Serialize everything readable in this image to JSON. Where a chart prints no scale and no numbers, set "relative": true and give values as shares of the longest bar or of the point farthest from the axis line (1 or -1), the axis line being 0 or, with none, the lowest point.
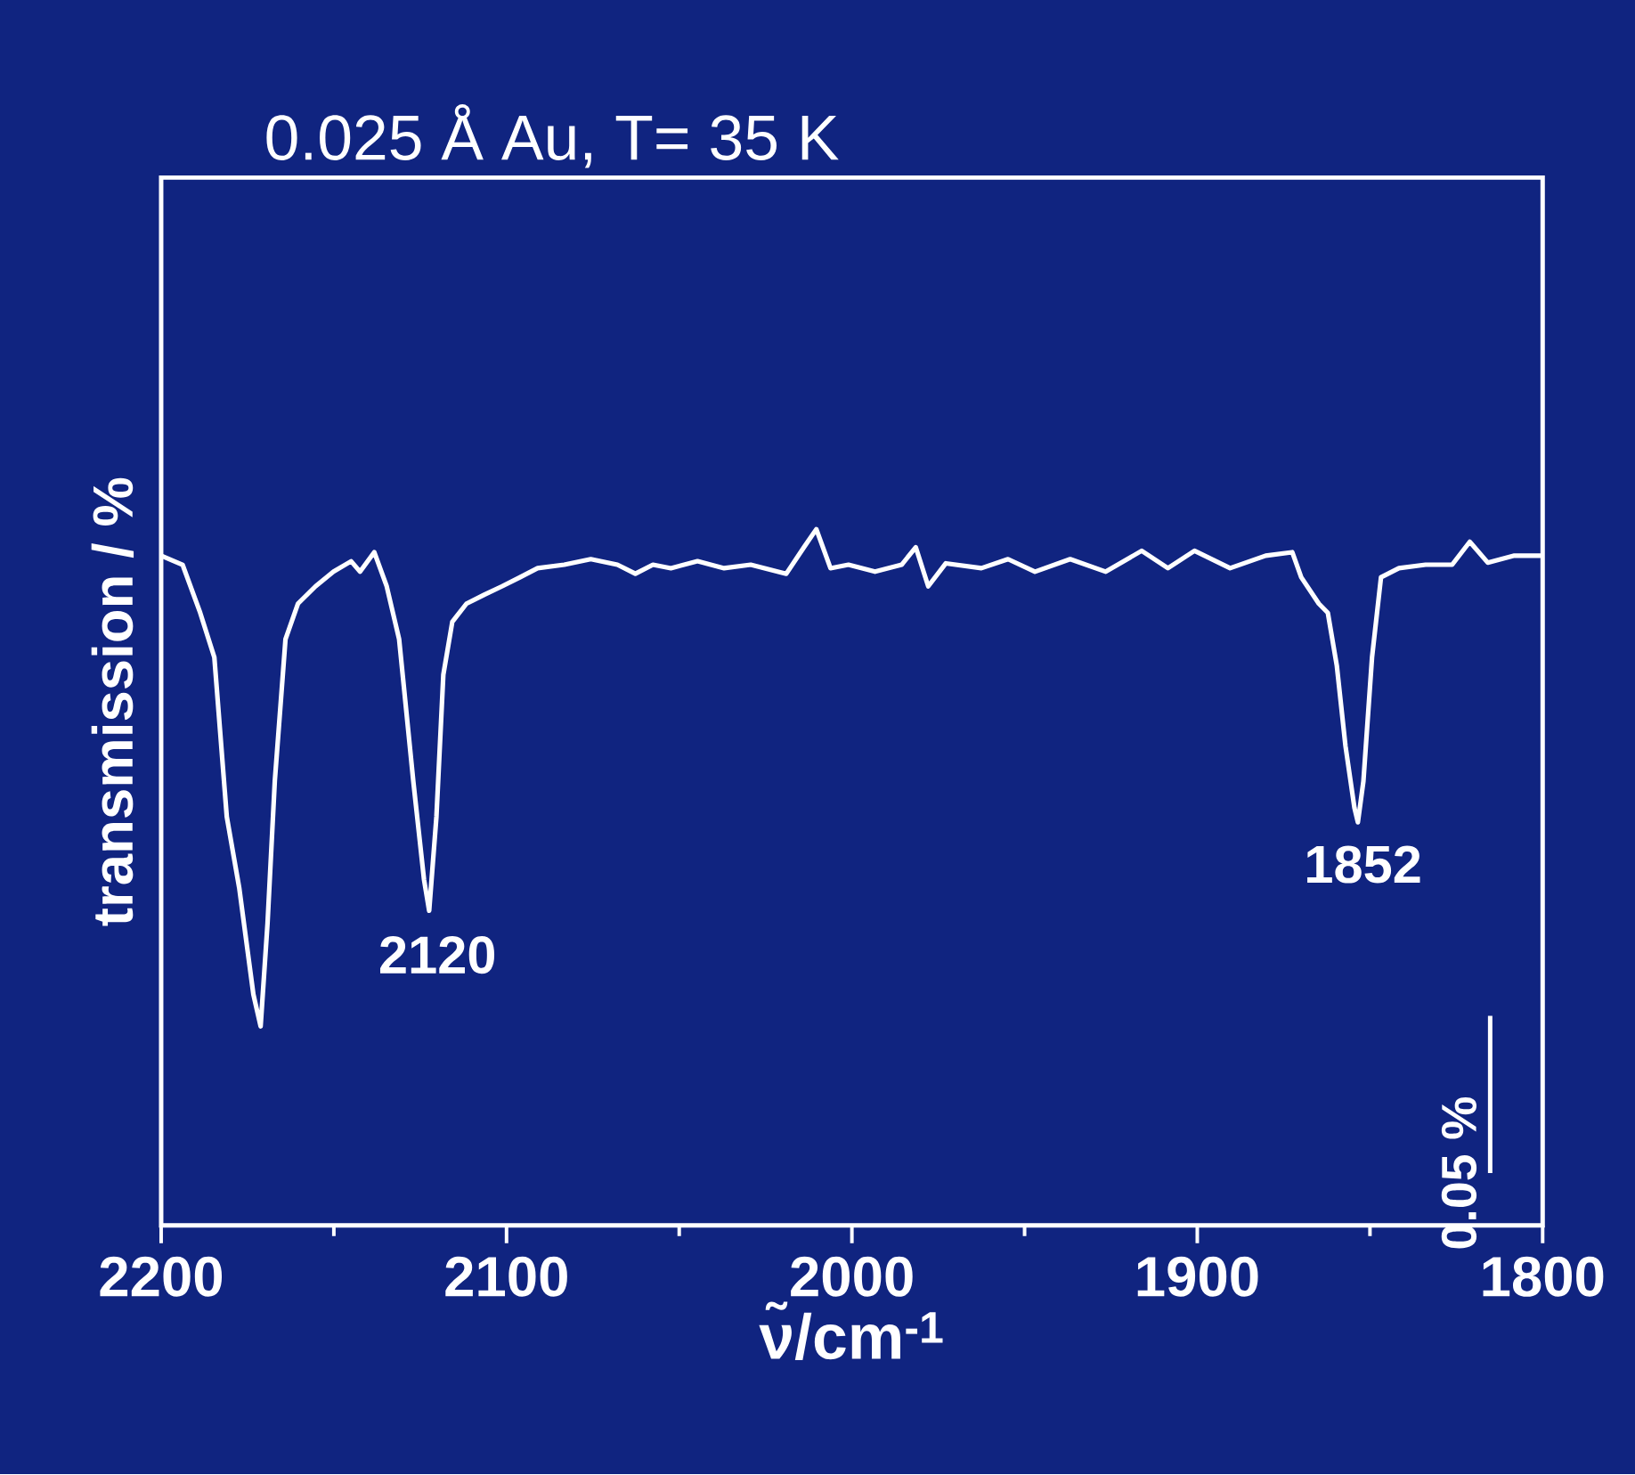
{
  "chart_data": {
    "type": "line",
    "title": "0.025 Å Au, T= 35 K",
    "xlabel": "ν̃/cm$^{-1}$",
    "ylabel": "transmission / %",
    "relative": true,
    "grid": false,
    "marker": "none",
    "line_style": "solid",
    "x": [
      2200,
      2193.8,
      2188.7,
      2184.6,
      2181.0,
      2177.4,
      2173.3,
      2171.2,
      2169.2,
      2167.1,
      2164.0,
      2160.4,
      2155.3,
      2150.1,
      2145.0,
      2142.4,
      2138.3,
      2134.7,
      2131.1,
      2127.0,
      2123.9,
      2122.4,
      2120.3,
      2118.3,
      2115.7,
      2111.6,
      2106.4,
      2101.3,
      2096.1,
      2091.0,
      2083.3,
      2075.6,
      2067.9,
      2062.7,
      2057.6,
      2052.4,
      2044.7,
      2037.0,
      2029.3,
      2019.0,
      2013.9,
      2010.3,
      2006.2,
      2001.0,
      1993.3,
      1985.6,
      1981.5,
      1977.9,
      1972.8,
      1962.5,
      1954.8,
      1947.0,
      1936.8,
      1926.5,
      1916.1,
      1908.5,
      1900.8,
      1890.5,
      1880.2,
      1872.5,
      1869.9,
      1864.8,
      1862.2,
      1859.6,
      1857.1,
      1854.5,
      1853.5,
      1851.9,
      1849.4,
      1846.8,
      1841.6,
      1833.9,
      1826.2,
      1821.1,
      1815.9,
      1808.2,
      1800
    ],
    "series": [
      {
        "color": "#ffffff",
        "values": [
          0.962,
          0.949,
          0.88,
          0.816,
          0.587,
          0.485,
          0.332,
          0.286,
          0.434,
          0.638,
          0.842,
          0.893,
          0.918,
          0.939,
          0.954,
          0.939,
          0.967,
          0.918,
          0.842,
          0.638,
          0.497,
          0.452,
          0.587,
          0.791,
          0.867,
          0.893,
          0.906,
          0.918,
          0.931,
          0.944,
          0.949,
          0.957,
          0.949,
          0.936,
          0.949,
          0.944,
          0.954,
          0.944,
          0.949,
          0.936,
          0.974,
          1.0,
          0.944,
          0.949,
          0.939,
          0.949,
          0.974,
          0.918,
          0.951,
          0.944,
          0.957,
          0.939,
          0.957,
          0.939,
          0.969,
          0.944,
          0.969,
          0.944,
          0.962,
          0.967,
          0.931,
          0.893,
          0.88,
          0.804,
          0.689,
          0.6,
          0.579,
          0.638,
          0.816,
          0.931,
          0.944,
          0.949,
          0.949,
          0.982,
          0.952,
          0.962,
          0.962
        ]
      }
    ],
    "xlim": [
      2200,
      1800
    ],
    "xticks": [
      2200,
      2100,
      2000,
      1900,
      1800
    ],
    "annotations": [
      {
        "text": "2120",
        "x": 2120,
        "y": 0.45
      },
      {
        "text": "1852",
        "x": 1852,
        "y": 0.58
      },
      "0.05 %"
    ]
  }
}
